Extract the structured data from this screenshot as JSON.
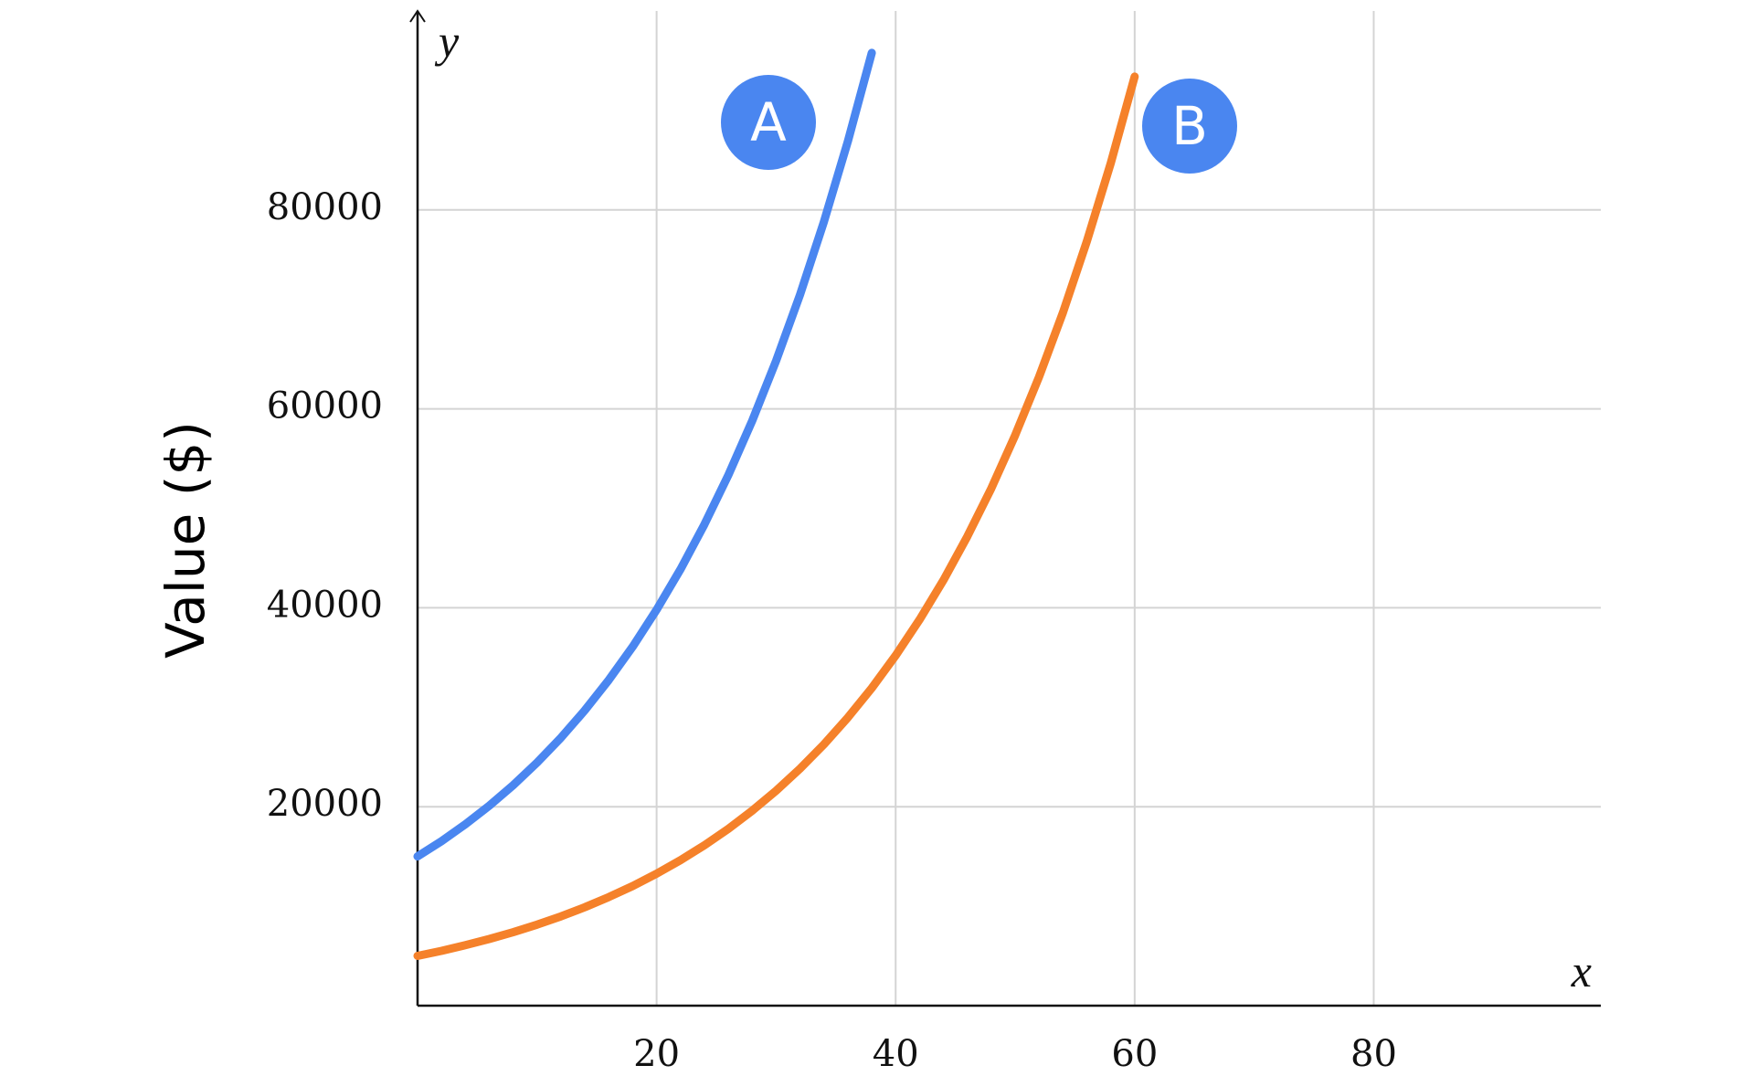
{
  "chart_data": {
    "type": "line",
    "y_label": "Value ($)",
    "x_axis_letter": "x",
    "y_axis_letter": "y",
    "xlim": [
      0,
      99
    ],
    "ylim": [
      0,
      100000
    ],
    "xticks": [
      20,
      40,
      60,
      80
    ],
    "yticks": [
      20000,
      40000,
      60000,
      80000
    ],
    "grid": true,
    "series": [
      {
        "name": "A",
        "color": "#4a86f0",
        "x": [
          0,
          2,
          4,
          6,
          8,
          10,
          12,
          14,
          16,
          18,
          20,
          22,
          24,
          26,
          28,
          30,
          32,
          34,
          36,
          38
        ],
        "values": [
          15000,
          16538,
          18233,
          20102,
          22162,
          24433,
          26938,
          29699,
          32743,
          36099,
          39800,
          43879,
          48377,
          53335,
          58802,
          64829,
          71474,
          78800,
          86877,
          95782
        ]
      },
      {
        "name": "B",
        "color": "#f5812a",
        "x": [
          0,
          2,
          4,
          6,
          8,
          10,
          12,
          14,
          16,
          18,
          20,
          22,
          24,
          26,
          28,
          30,
          32,
          34,
          36,
          38,
          40,
          42,
          44,
          46,
          48,
          50,
          52,
          54,
          56,
          58,
          60
        ],
        "values": [
          5000,
          5513,
          6078,
          6701,
          7387,
          8144,
          8979,
          9900,
          10914,
          12033,
          13267,
          14626,
          16126,
          17778,
          19601,
          21610,
          23825,
          26267,
          28959,
          31927,
          35200,
          38808,
          42786,
          47171,
          52006,
          57337,
          63214,
          69694,
          76837,
          84713,
          93396
        ]
      }
    ]
  }
}
